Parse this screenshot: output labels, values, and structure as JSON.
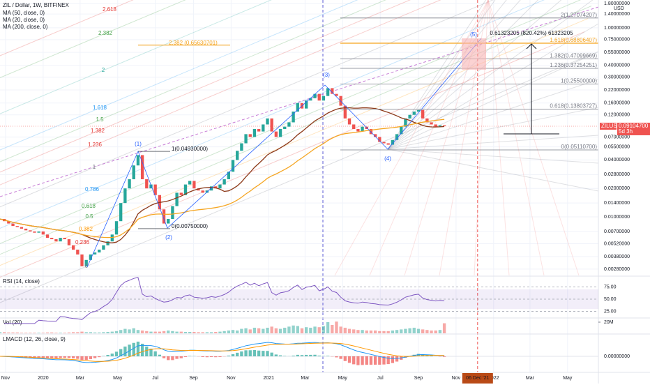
{
  "header": {
    "symbol": "ZIL / Dollar, 1W, BITFINEX",
    "indicators": [
      "MA (50, close, 0)",
      "MA (20, close, 0)",
      "MA (200, close, 0)"
    ]
  },
  "price_axis": {
    "currency": "USD",
    "range": [
      0.0024,
      1.97
    ],
    "log_scale": true,
    "ticks": [
      {
        "value": 1.8,
        "label": "1.80000000"
      },
      {
        "value": 1.4,
        "label": "1.40000000"
      },
      {
        "value": 1.0,
        "label": "1.00000000"
      },
      {
        "value": 0.75,
        "label": "0.75000000"
      },
      {
        "value": 0.55,
        "label": "0.55000000"
      },
      {
        "value": 0.4,
        "label": "0.40000000"
      },
      {
        "value": 0.3,
        "label": "0.30000000"
      },
      {
        "value": 0.22,
        "label": "0.22000000"
      },
      {
        "value": 0.16,
        "label": "0.16000000"
      },
      {
        "value": 0.12,
        "label": "0.12000000"
      },
      {
        "value": 0.07,
        "label": "0.07000000"
      },
      {
        "value": 0.055,
        "label": "0.05500000"
      },
      {
        "value": 0.04,
        "label": "0.04000000"
      },
      {
        "value": 0.028,
        "label": "0.02800000"
      },
      {
        "value": 0.02,
        "label": "0.02000000"
      },
      {
        "value": 0.014,
        "label": "0.01400000"
      },
      {
        "value": 0.01,
        "label": "0.01000000"
      },
      {
        "value": 0.007,
        "label": "0.00700000"
      },
      {
        "value": 0.0052,
        "label": "0.00520000"
      },
      {
        "value": 0.0038,
        "label": "0.00380000"
      },
      {
        "value": 0.0028,
        "label": "0.00280000"
      }
    ]
  },
  "last_price": {
    "value": 0.091047,
    "label": "0.09104700",
    "symbol": "ZILUSD",
    "countdown": "5d 3h"
  },
  "time_axis": {
    "range": [
      "2019-10-23",
      "2022-06-20"
    ],
    "ticks": [
      {
        "value": "2019-11-01",
        "label": "Nov"
      },
      {
        "value": "2020-01-01",
        "label": "2020"
      },
      {
        "value": "2020-03-01",
        "label": "Mar"
      },
      {
        "value": "2020-05-01",
        "label": "May"
      },
      {
        "value": "2020-07-01",
        "label": "Jul"
      },
      {
        "value": "2020-09-01",
        "label": "Sep"
      },
      {
        "value": "2020-11-01",
        "label": "Nov"
      },
      {
        "value": "2021-01-01",
        "label": "2021"
      },
      {
        "value": "2021-03-01",
        "label": "Mar"
      },
      {
        "value": "2021-05-01",
        "label": "May"
      },
      {
        "value": "2021-07-01",
        "label": "Jul"
      },
      {
        "value": "2021-09-01",
        "label": "Sep"
      },
      {
        "value": "2021-11-01",
        "label": "Nov"
      },
      {
        "value": "2022-01-01",
        "label": "2022"
      },
      {
        "value": "2022-03-01",
        "label": "Mar"
      },
      {
        "value": "2022-05-01",
        "label": "May"
      }
    ],
    "cursor": {
      "value": "2021-12-06",
      "label": "06 Dec '21"
    }
  },
  "price": {
    "start": "2019-10-23",
    "interval_days": 7,
    "closes": [
      0.0095,
      0.009,
      0.0085,
      0.008,
      0.0078,
      0.0075,
      0.0072,
      0.007,
      0.0068,
      0.007,
      0.0065,
      0.006,
      0.0058,
      0.0055,
      0.006,
      0.0058,
      0.005,
      0.0045,
      0.004,
      0.003,
      0.0035,
      0.004,
      0.0042,
      0.0045,
      0.005,
      0.0055,
      0.0065,
      0.009,
      0.014,
      0.02,
      0.025,
      0.035,
      0.045,
      0.025,
      0.02,
      0.022,
      0.017,
      0.012,
      0.0085,
      0.0095,
      0.013,
      0.018,
      0.017,
      0.022,
      0.024,
      0.02,
      0.019,
      0.018,
      0.019,
      0.021,
      0.02,
      0.022,
      0.025,
      0.03,
      0.04,
      0.05,
      0.06,
      0.075,
      0.07,
      0.085,
      0.08,
      0.095,
      0.11,
      0.08,
      0.07,
      0.085,
      0.09,
      0.1,
      0.13,
      0.16,
      0.14,
      0.17,
      0.18,
      0.2,
      0.17,
      0.19,
      0.23,
      0.2,
      0.19,
      0.15,
      0.11,
      0.095,
      0.085,
      0.08,
      0.09,
      0.085,
      0.075,
      0.07,
      0.062,
      0.06,
      0.058,
      0.065,
      0.075,
      0.09,
      0.11,
      0.12,
      0.13,
      0.135,
      0.11,
      0.1,
      0.095,
      0.09,
      0.093,
      0.091
    ]
  },
  "volume": {
    "title": "Vol (20)",
    "tick": {
      "value": 20,
      "label": "20M"
    },
    "values": [
      2,
      2,
      1.5,
      1.5,
      1.5,
      1,
      1,
      1,
      1,
      1,
      1,
      1.5,
      1.5,
      1,
      1,
      1,
      1.5,
      2,
      2,
      3,
      2,
      2,
      1.5,
      1.5,
      2,
      2.5,
      3,
      4,
      6,
      8,
      7,
      9,
      6,
      5,
      4,
      3,
      3,
      3,
      4,
      5,
      4,
      3,
      3,
      2.5,
      2.5,
      2.5,
      2,
      2,
      2,
      2,
      2.5,
      3,
      4,
      5,
      6,
      5,
      8,
      9,
      7,
      10,
      9,
      8,
      10,
      12,
      9,
      8,
      10,
      12,
      14,
      13,
      9,
      11,
      10,
      12,
      11,
      13,
      20,
      15,
      21,
      12,
      10,
      8,
      7,
      6,
      6,
      5,
      5,
      5,
      4,
      4,
      4,
      5,
      6,
      7,
      8,
      9,
      10,
      8,
      7,
      6,
      5,
      5,
      6,
      18
    ]
  },
  "rsi": {
    "title": "RSI (14, close)",
    "ticks": [
      {
        "value": 75,
        "label": "75.00"
      },
      {
        "value": 50,
        "label": "50.00"
      },
      {
        "value": 25,
        "label": "25.00"
      }
    ]
  },
  "lmacd": {
    "title": "LMACD (12, 26, close, 9)",
    "tick": {
      "value": 0,
      "label": "0.00000000"
    }
  },
  "fib_left": [
    "2.618",
    "2.382",
    "2",
    "1.618",
    "1.5",
    "1.382",
    "1.236",
    "1",
    "0.786",
    "0.618",
    "0.5",
    "0.382",
    "0.236",
    "0"
  ],
  "extension_label": {
    "price": 0.65630701,
    "label": "2.382 (0.65630701)"
  },
  "swing_labels": [
    {
      "price": 0.0493,
      "label": "1(0.04930000)"
    },
    {
      "price": 0.0075,
      "label": "0(0.00750000)"
    }
  ],
  "fib_right": [
    {
      "price": 1.27074207,
      "label": "2(1.27074207)"
    },
    {
      "price": 0.68806407,
      "label": "1.618(0.68806407)"
    },
    {
      "price": 0.47099669,
      "label": "1.382(0.47099669)"
    },
    {
      "price": 0.37254251,
      "label": "1.236(0.37254251)"
    },
    {
      "price": 0.255,
      "label": "1(0.25500000)"
    },
    {
      "price": 0.13803727,
      "label": "0.618(0.13803727)"
    },
    {
      "price": 0.051107,
      "label": "0(0.05110700)"
    }
  ],
  "measure_label": "0.61323205 (820.42%) 61323205",
  "waves": [
    "(1)",
    "(2)",
    "(3)",
    "(4)",
    "(5)"
  ]
}
